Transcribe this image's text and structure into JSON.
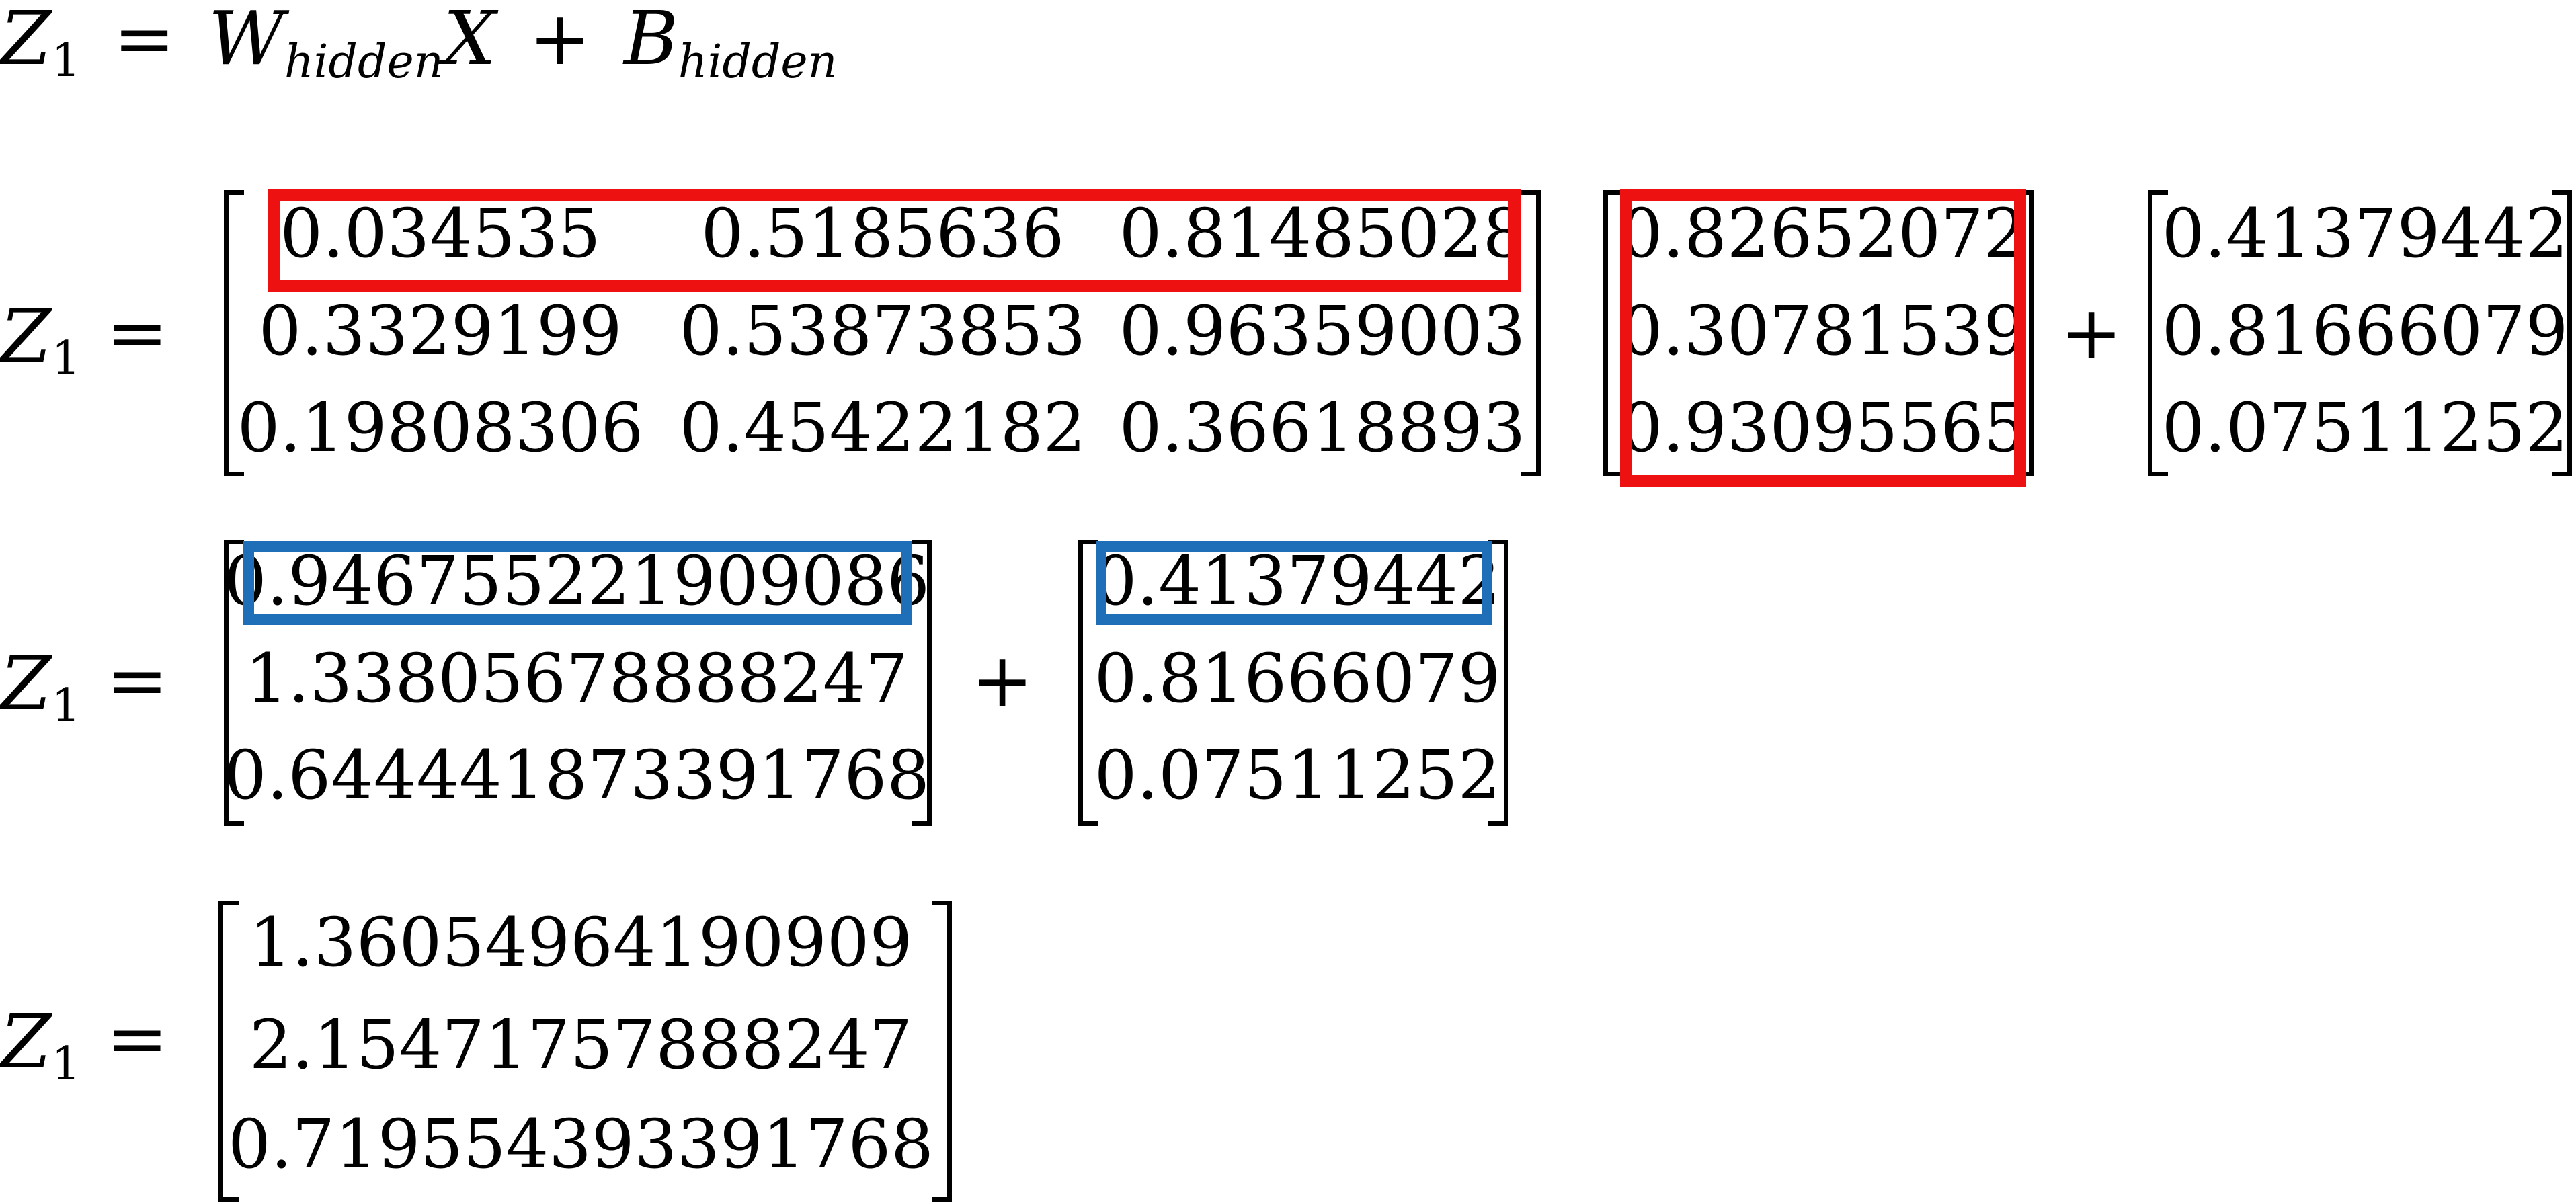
{
  "colors": {
    "red_highlight": "#ee1111",
    "blue_highlight": "#1f6fb8",
    "text": "#000000"
  },
  "header": {
    "lhs_base": "Z",
    "lhs_sub": "1",
    "eq": "=",
    "w_base": "W",
    "w_sub": "hidden",
    "x": "X",
    "plus": "+",
    "b_base": "B",
    "b_sub": "hidden"
  },
  "rows": {
    "z_base": "Z",
    "z_sub": "1",
    "eq": "=",
    "plus": "+"
  },
  "step1": {
    "weights": [
      [
        "0.034535",
        "0.5185636",
        "0.81485028"
      ],
      [
        "0.3329199",
        "0.53873853",
        "0.96359003"
      ],
      [
        "0.19808306",
        "0.45422182",
        "0.36618893"
      ]
    ],
    "input": [
      "0.82652072",
      "0.30781539",
      "0.93095565"
    ],
    "bias": [
      "0.41379442",
      "0.81666079",
      "0.07511252"
    ]
  },
  "step2": {
    "product": [
      "0.946755221909086",
      "1.33805678888247",
      "0.644441873391768"
    ],
    "bias": [
      "0.41379442",
      "0.81666079",
      "0.07511252"
    ]
  },
  "step3": {
    "result": [
      "1.36054964190909",
      "2.15471757888247",
      "0.719554393391768"
    ]
  }
}
